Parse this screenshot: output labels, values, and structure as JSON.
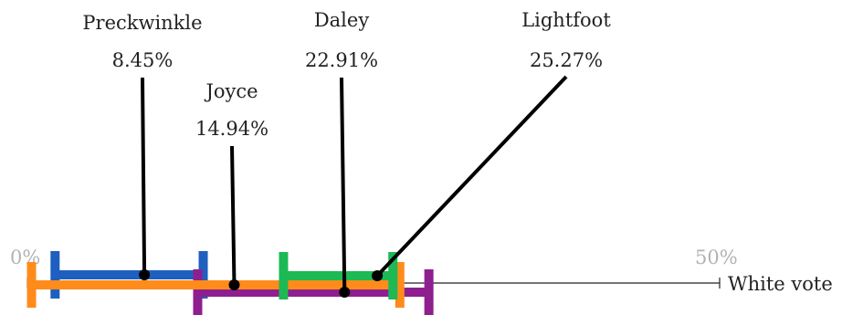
{
  "chart_data": {
    "type": "range",
    "xlabel": "White vote",
    "xlim": [
      0,
      50
    ],
    "ticks": [
      {
        "value": 0,
        "label": "0%"
      },
      {
        "value": 50,
        "label": "50%"
      }
    ],
    "series": [
      {
        "name": "Preckwinkle",
        "value": 8.45,
        "value_label": "8.45%",
        "range": [
          2.0,
          12.7
        ],
        "color": "#1f5fbf"
      },
      {
        "name": "Joyce",
        "value": 14.94,
        "value_label": "14.94%",
        "range": [
          0.3,
          26.9
        ],
        "color": "#ff8c1a"
      },
      {
        "name": "Daley",
        "value": 22.91,
        "value_label": "22.91%",
        "range": [
          12.3,
          29.0
        ],
        "color": "#8e1f8e"
      },
      {
        "name": "Lightfoot",
        "value": 25.27,
        "value_label": "25.27%",
        "range": [
          18.5,
          26.4
        ],
        "color": "#1db954"
      }
    ]
  }
}
